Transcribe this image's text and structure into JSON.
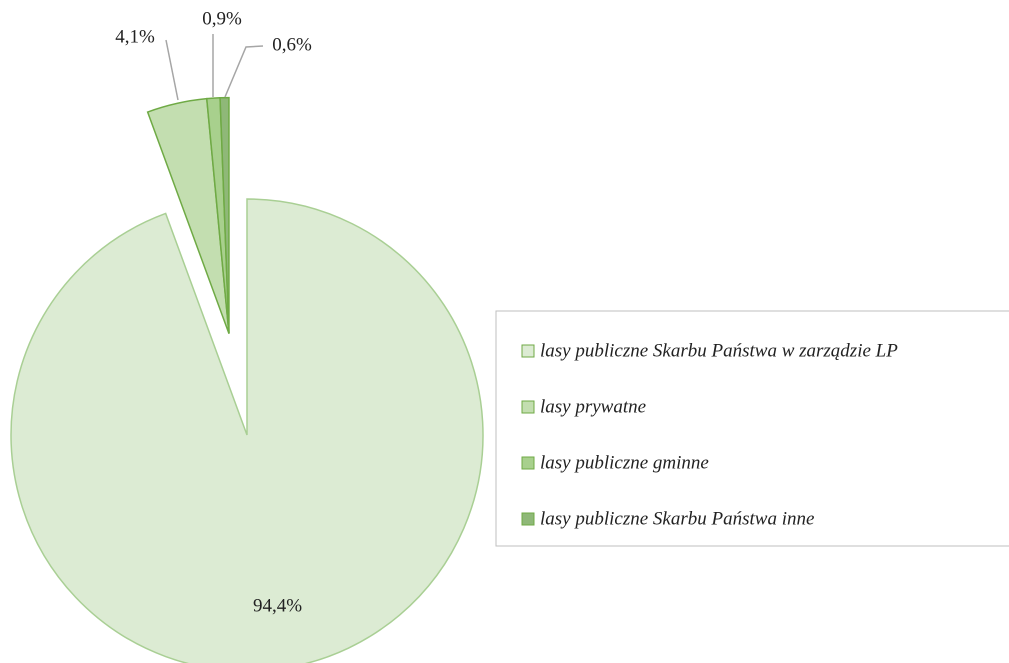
{
  "chart_data": {
    "type": "pie",
    "categories": [
      "lasy publiczne Skarbu Państwa w zarządzie LP",
      "lasy prywatne",
      "lasy publiczne gminne",
      "lasy publiczne Skarbu Państwa inne"
    ],
    "values": [
      94.4,
      4.1,
      0.9,
      0.6
    ],
    "value_labels": [
      "94,4%",
      "4,1%",
      "0,9%",
      "0,6%"
    ],
    "colors": [
      "#dcebd3",
      "#c3deb0",
      "#a8d08d",
      "#8fb878"
    ],
    "legend": "right"
  }
}
